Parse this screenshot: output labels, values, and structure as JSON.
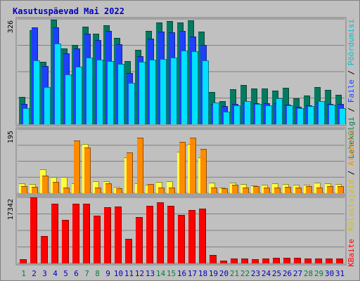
{
  "title": "Kasutuspäevad Mai 2022",
  "colors": {
    "background": "#c0c0c0",
    "title": "#0000c0",
    "grid": "#808080",
    "weekday_label": "#0000c0",
    "weekend_label": "#008040",
    "pages": "#047a60",
    "files": "#1e40ff",
    "hits": "#00e0ff",
    "visits": "#ffff40",
    "visitors": "#ff8c00",
    "kbytes": "#ff0000"
  },
  "right_labels": {
    "top": [
      {
        "text": "Lehekülgi",
        "color": "#047a60"
      },
      {
        "text": " / ",
        "color": "#000000"
      },
      {
        "text": "Faile",
        "color": "#1e40ff"
      },
      {
        "text": " / ",
        "color": "#000000"
      },
      {
        "text": "Pöördumisi",
        "color": "#00c0d0"
      }
    ],
    "middle": [
      {
        "text": "Külastajaid",
        "color": "#d0c000"
      },
      {
        "text": " / ",
        "color": "#000000"
      },
      {
        "text": "Arvuteid",
        "color": "#ff8c00"
      }
    ],
    "bottom": [
      {
        "text": "KBaite",
        "color": "#ff0000"
      }
    ]
  },
  "chart_data": {
    "type": "bar",
    "title": "Kasutuspäevad Mai 2022",
    "categories": [
      "1",
      "2",
      "3",
      "4",
      "5",
      "6",
      "7",
      "8",
      "9",
      "10",
      "11",
      "12",
      "13",
      "14",
      "15",
      "16",
      "17",
      "18",
      "19",
      "20",
      "21",
      "22",
      "23",
      "24",
      "25",
      "26",
      "27",
      "28",
      "29",
      "30",
      "31"
    ],
    "weekend_days": [
      "1",
      "7",
      "8",
      "14",
      "15",
      "21",
      "22",
      "28",
      "29"
    ],
    "panels": [
      {
        "name": "top",
        "ymax_label": "326",
        "ymax": 326,
        "series": [
          {
            "name": "Lehekülgi",
            "color": "#047a60",
            "values": [
              84,
              291,
              193,
              323,
              235,
              246,
              303,
              280,
              306,
              268,
              195,
              231,
              289,
              315,
              320,
              316,
              321,
              287,
              101,
              72,
              108,
              121,
              110,
              111,
              105,
              114,
              80,
              90,
              116,
              107,
              91
            ]
          },
          {
            "name": "Faile",
            "color": "#1e40ff",
            "values": [
              62,
              299,
              180,
              300,
              220,
              234,
              281,
              260,
              289,
              248,
              159,
              211,
              265,
              286,
              285,
              289,
              272,
              246,
              63,
              56,
              63,
              67,
              65,
              65,
              66,
              61,
              55,
              59,
              68,
              62,
              62
            ]
          },
          {
            "name": "Pöördumisi",
            "color": "#00e0ff",
            "values": [
              51,
              197,
              116,
              250,
              154,
              179,
              206,
              199,
              195,
              186,
              129,
              193,
              199,
              203,
              206,
              229,
              225,
              197,
              67,
              39,
              58,
              71,
              62,
              58,
              80,
              59,
              50,
              56,
              71,
              60,
              49
            ]
          }
        ]
      },
      {
        "name": "middle",
        "ymax_label": "195",
        "ymax": 195,
        "series": [
          {
            "name": "Külastajaid",
            "color": "#ffff40",
            "values": [
              29,
              28,
              72,
              49,
              49,
              29,
              150,
              36,
              36,
              20,
              110,
              29,
              26,
              34,
              36,
              127,
              150,
              109,
              32,
              17,
              32,
              28,
              24,
              26,
              31,
              28,
              26,
              26,
              33,
              29,
              28
            ]
          },
          {
            "name": "Arvuteid",
            "color": "#ff8c00",
            "values": [
              22,
              19,
              54,
              35,
              18,
              160,
              140,
              17,
              29,
              16,
              124,
              170,
              28,
              18,
              17,
              156,
              170,
              135,
              18,
              16,
              26,
              18,
              22,
              17,
              18,
              20,
              18,
              21,
              17,
              22,
              21
            ]
          }
        ]
      },
      {
        "name": "bottom",
        "ymax_label": "17342",
        "ymax": 17342,
        "series": [
          {
            "name": "KBaite",
            "color": "#ff0000",
            "values": [
              1100,
              17342,
              7200,
              15600,
              11500,
              15600,
              15600,
              12500,
              14700,
              14900,
              6500,
              12100,
              15100,
              16000,
              15200,
              12800,
              14000,
              14300,
              2200,
              700,
              1300,
              1200,
              1100,
              1200,
              1500,
              1500,
              1400,
              1200,
              1300,
              1300,
              1300
            ]
          }
        ]
      }
    ]
  }
}
